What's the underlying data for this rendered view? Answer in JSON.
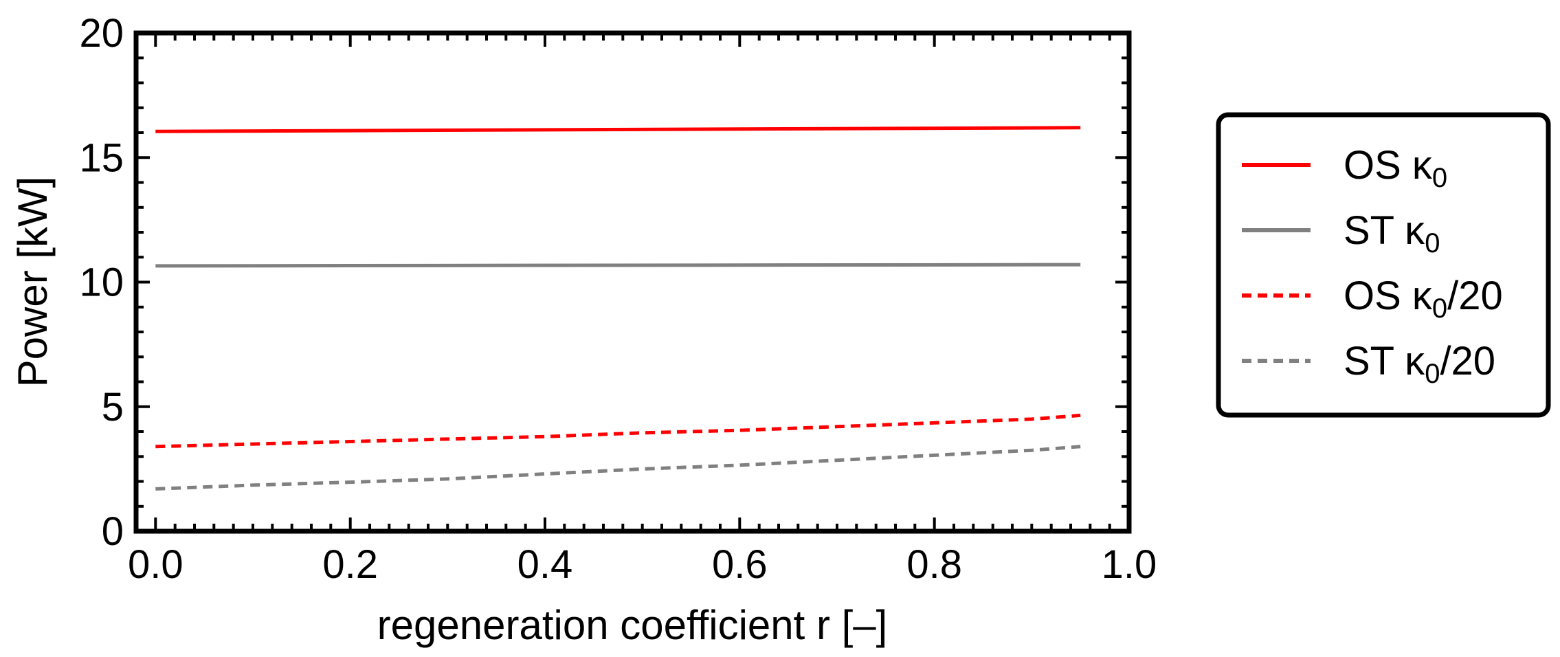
{
  "chart_data": {
    "type": "line",
    "xlabel": "regeneration coefficient r [–]",
    "ylabel": "Power [kW]",
    "xlim": [
      -0.02,
      1.0
    ],
    "ylim": [
      0,
      20
    ],
    "xticks": [
      0.0,
      0.2,
      0.4,
      0.6,
      0.8,
      1.0
    ],
    "xtick_labels": [
      "0.0",
      "0.2",
      "0.4",
      "0.6",
      "0.8",
      "1.0"
    ],
    "yticks": [
      0,
      5,
      10,
      15,
      20
    ],
    "ytick_labels": [
      "0",
      "5",
      "10",
      "15",
      "20"
    ],
    "grid": false,
    "legend_position": "right",
    "series": [
      {
        "name": "OS κ",
        "sub": "0",
        "suffix": "",
        "color": "#ff0000",
        "style": "solid",
        "x": [
          0.0,
          0.95
        ],
        "y": [
          16.05,
          16.2
        ]
      },
      {
        "name": "ST κ",
        "sub": "0",
        "suffix": "",
        "color": "#808080",
        "style": "solid",
        "x": [
          0.0,
          0.95
        ],
        "y": [
          10.65,
          10.7
        ]
      },
      {
        "name": "OS κ",
        "sub": "0",
        "suffix": "/20",
        "color": "#ff0000",
        "style": "dashed",
        "x": [
          0.0,
          0.1,
          0.2,
          0.3,
          0.4,
          0.5,
          0.6,
          0.7,
          0.8,
          0.9,
          0.95
        ],
        "y": [
          3.4,
          3.5,
          3.6,
          3.7,
          3.8,
          3.95,
          4.05,
          4.2,
          4.35,
          4.5,
          4.65
        ]
      },
      {
        "name": "ST κ",
        "sub": "0",
        "suffix": "/20",
        "color": "#808080",
        "style": "dashed",
        "x": [
          0.0,
          0.1,
          0.2,
          0.3,
          0.4,
          0.5,
          0.6,
          0.7,
          0.8,
          0.9,
          0.95
        ],
        "y": [
          1.7,
          1.85,
          1.97,
          2.1,
          2.3,
          2.5,
          2.65,
          2.85,
          3.05,
          3.25,
          3.4
        ]
      }
    ]
  }
}
